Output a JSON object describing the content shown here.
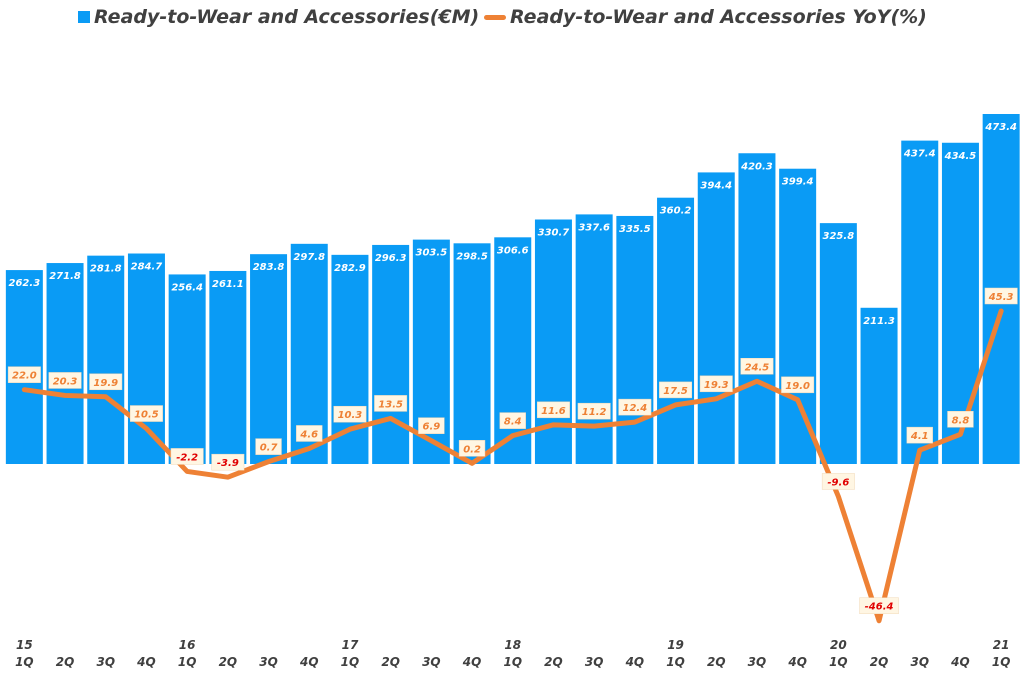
{
  "colors": {
    "bar": "#0A9BF5",
    "line": "#EE8135",
    "line_label_text": "#EE8135",
    "neg_label_text": "#E00000",
    "bar_label_text": "#FFFFFF"
  },
  "legend": {
    "bar_label": "Ready-to-Wear and Accessories(€M)",
    "line_label": "Ready-to-Wear and Accessories YoY(%)"
  },
  "chart_data": {
    "type": "bar+line",
    "categories": [
      "1Q",
      "2Q",
      "3Q",
      "4Q",
      "1Q",
      "2Q",
      "3Q",
      "4Q",
      "1Q",
      "2Q",
      "3Q",
      "4Q",
      "1Q",
      "2Q",
      "3Q",
      "4Q",
      "1Q",
      "2Q",
      "3Q",
      "4Q",
      "1Q",
      "2Q",
      "3Q",
      "4Q",
      "1Q"
    ],
    "year_labels": [
      "15",
      "",
      "",
      "",
      "16",
      "",
      "",
      "",
      "17",
      "",
      "",
      "",
      "18",
      "",
      "",
      "",
      "19",
      "",
      "",
      "",
      "20",
      "",
      "",
      "",
      "21"
    ],
    "series": [
      {
        "name": "Ready-to-Wear and Accessories(€M)",
        "type": "bar",
        "values": [
          262.3,
          271.8,
          281.8,
          284.7,
          256.4,
          261.1,
          283.8,
          297.8,
          282.9,
          296.3,
          303.5,
          298.5,
          306.6,
          330.7,
          337.6,
          335.5,
          360.2,
          394.4,
          420.3,
          399.4,
          325.8,
          211.3,
          437.4,
          434.5,
          473.4
        ],
        "labels": [
          "262.3",
          "271.8",
          "281.8",
          "284.7",
          "256.4",
          "261.1",
          "283.8",
          "297.8",
          "282.9",
          "296.3",
          "303.5",
          "298.5",
          "306.6",
          "330.7",
          "337.6",
          "335.5",
          "360.2",
          "394.4",
          "420.3",
          "399.4",
          "325.8",
          "211.3",
          "437.4",
          "434.5",
          "473.4"
        ]
      },
      {
        "name": "Ready-to-Wear and Accessories YoY(%)",
        "type": "line",
        "values": [
          22.0,
          20.3,
          19.9,
          10.5,
          -2.2,
          -3.9,
          0.7,
          4.6,
          10.3,
          13.5,
          6.9,
          0.2,
          8.4,
          11.6,
          11.2,
          12.4,
          17.5,
          19.3,
          24.5,
          19.0,
          -9.6,
          -46.4,
          4.1,
          8.8,
          45.3
        ],
        "labels": [
          "22.0",
          "20.3",
          "19.9",
          "10.5",
          "-2.2",
          "-3.9",
          "0.7",
          "4.6",
          "10.3",
          "13.5",
          "6.9",
          "0.2",
          "8.4",
          "11.6",
          "11.2",
          "12.4",
          "17.5",
          "19.3",
          "24.5",
          "19.0",
          "-9.6",
          "-46.4",
          "4.1",
          "8.8",
          "45.3"
        ]
      }
    ],
    "bar_axis_range": [
      0,
      500
    ],
    "line_axis_range": [
      -50,
      70
    ],
    "grid": false,
    "legend_position": "top"
  }
}
